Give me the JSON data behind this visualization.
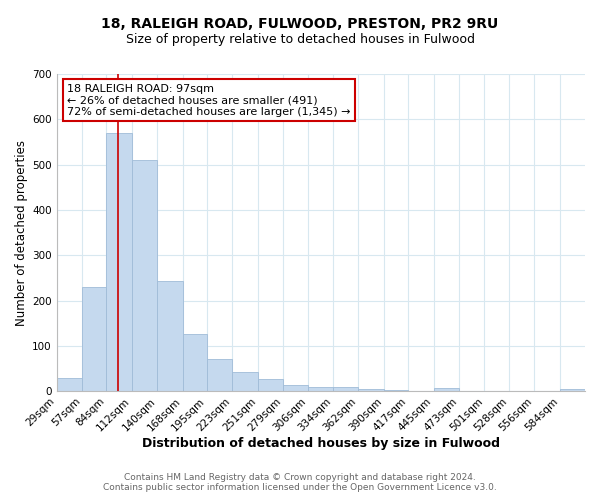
{
  "title": "18, RALEIGH ROAD, FULWOOD, PRESTON, PR2 9RU",
  "subtitle": "Size of property relative to detached houses in Fulwood",
  "xlabel": "Distribution of detached houses by size in Fulwood",
  "ylabel": "Number of detached properties",
  "bin_edges": [
    29,
    57,
    84,
    112,
    140,
    168,
    195,
    223,
    251,
    279,
    306,
    334,
    362,
    390,
    417,
    445,
    473,
    501,
    528,
    556,
    584
  ],
  "bar_heights": [
    28,
    230,
    570,
    510,
    243,
    127,
    70,
    42,
    27,
    14,
    10,
    10,
    5,
    3,
    0,
    7,
    0,
    0,
    0,
    0,
    5
  ],
  "bar_color": "#c5d9ee",
  "bar_edgecolor": "#a0bcd8",
  "bar_linewidth": 0.6,
  "red_line_x": 97,
  "red_line_color": "#cc0000",
  "ylim": [
    0,
    700
  ],
  "yticks": [
    0,
    100,
    200,
    300,
    400,
    500,
    600,
    700
  ],
  "annotation_title": "18 RALEIGH ROAD: 97sqm",
  "annotation_line1": "← 26% of detached houses are smaller (491)",
  "annotation_line2": "72% of semi-detached houses are larger (1,345) →",
  "annotation_box_color": "#ffffff",
  "annotation_box_edgecolor": "#cc0000",
  "grid_color": "#d8e8f0",
  "background_color": "#ffffff",
  "footer_line1": "Contains HM Land Registry data © Crown copyright and database right 2024.",
  "footer_line2": "Contains public sector information licensed under the Open Government Licence v3.0.",
  "title_fontsize": 10,
  "subtitle_fontsize": 9,
  "xlabel_fontsize": 9,
  "ylabel_fontsize": 8.5,
  "tick_fontsize": 7.5,
  "annotation_fontsize": 8,
  "footer_fontsize": 6.5
}
